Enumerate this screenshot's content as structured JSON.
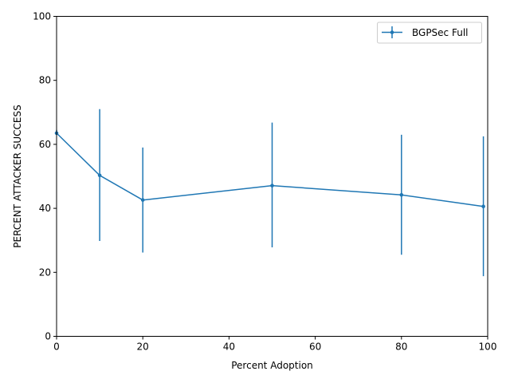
{
  "chart_data": {
    "type": "line",
    "title": "",
    "xlabel": "Percent Adoption",
    "ylabel": "PERCENT ATTACKER SUCCESS",
    "xlim": [
      0,
      100
    ],
    "ylim": [
      0,
      100
    ],
    "xticks": [
      0,
      20,
      40,
      60,
      80,
      100
    ],
    "yticks": [
      0,
      20,
      40,
      60,
      80,
      100
    ],
    "grid": false,
    "legend_position": "top-right",
    "series": [
      {
        "name": "BGPSec Full",
        "color": "#1f77b4",
        "marker": "point",
        "error_bars": true,
        "points": [
          {
            "x": 0,
            "y": 63.5,
            "yerr_low": 63.5,
            "yerr_high": 64.5
          },
          {
            "x": 10,
            "y": 50.3,
            "yerr_low": 29.8,
            "yerr_high": 71.0
          },
          {
            "x": 20,
            "y": 42.6,
            "yerr_low": 26.2,
            "yerr_high": 59.0
          },
          {
            "x": 50,
            "y": 47.1,
            "yerr_low": 27.8,
            "yerr_high": 66.8
          },
          {
            "x": 80,
            "y": 44.2,
            "yerr_low": 25.5,
            "yerr_high": 63.0
          },
          {
            "x": 99,
            "y": 40.6,
            "yerr_low": 18.8,
            "yerr_high": 62.5
          }
        ]
      }
    ]
  }
}
